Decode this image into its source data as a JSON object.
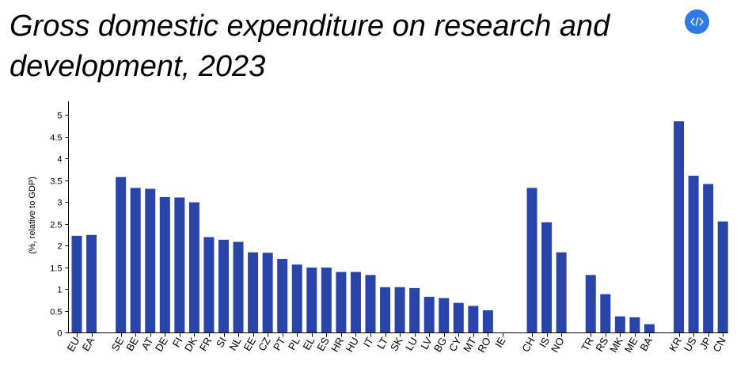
{
  "title": "Gross domestic expenditure on research and development, 2023",
  "embed_button": {
    "icon": "code-icon"
  },
  "colors": {
    "bar": "#2a45a9",
    "axis": "#000000",
    "embed_button": "#2f7ae5"
  },
  "chart_data": {
    "type": "bar",
    "ylabel": "(%, relative to GDP)",
    "ylim": [
      0,
      5.25
    ],
    "yticks": [
      0,
      0.5,
      1,
      1.5,
      2,
      2.5,
      3,
      3.5,
      4,
      4.5,
      5
    ],
    "yticklabels": [
      "0",
      "0.5",
      "1",
      "1.5",
      "2",
      "2.5",
      "3",
      "3.5",
      "4",
      "4.5",
      "5"
    ],
    "grid": false,
    "categories": [
      "EU",
      "EA",
      "",
      "SE",
      "BE",
      "AT",
      "DE",
      "FI",
      "DK",
      "FR",
      "SI",
      "NL",
      "EE",
      "CZ",
      "PT",
      "PL",
      "EL",
      "ES",
      "HR",
      "HU",
      "IT",
      "LT",
      "SK",
      "LU",
      "LV",
      "BG",
      "CY",
      "MT",
      "RO",
      "IE",
      "",
      "CH",
      "IS",
      "NO",
      "",
      "TR",
      "RS",
      "MK",
      "ME",
      "BA",
      "",
      "KR",
      "US",
      "JP",
      "CN"
    ],
    "values": [
      2.22,
      2.24,
      null,
      3.57,
      3.32,
      3.3,
      3.11,
      3.1,
      2.99,
      2.19,
      2.13,
      2.08,
      1.84,
      1.83,
      1.69,
      1.56,
      1.49,
      1.49,
      1.39,
      1.39,
      1.32,
      1.04,
      1.04,
      1.02,
      0.82,
      0.79,
      0.68,
      0.61,
      0.51,
      null,
      null,
      3.32,
      2.53,
      1.84,
      null,
      1.32,
      0.88,
      0.37,
      0.35,
      0.19,
      null,
      4.85,
      3.6,
      3.41,
      2.55
    ]
  }
}
